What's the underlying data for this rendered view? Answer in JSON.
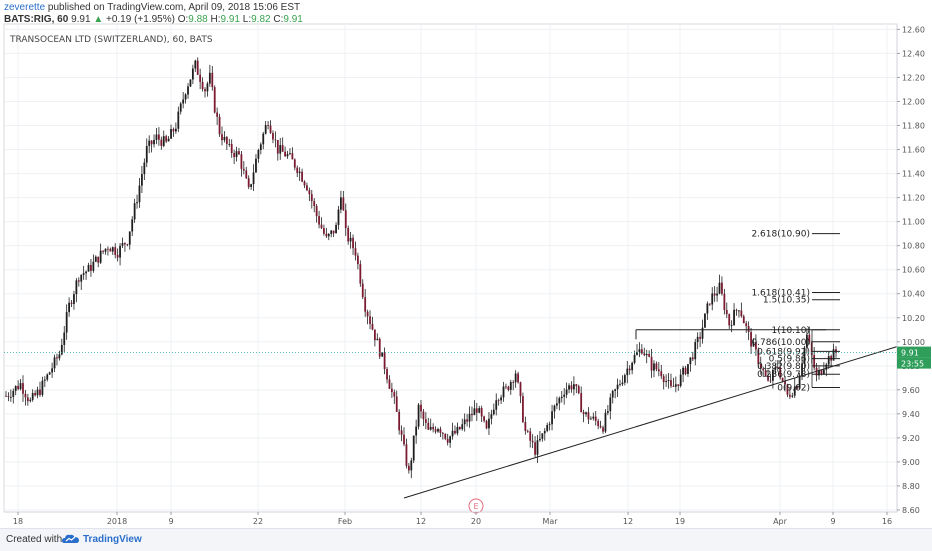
{
  "header": {
    "user": "zeverette",
    "published_text": "published on TradingView.com, April 09, 2018 15:06 EST",
    "symbol": "BATS:RIG, 60",
    "last": "9.91",
    "change": "+0.19 (+1.95%)",
    "o_label": "O:",
    "o_value": "9.88",
    "h_label": "H:",
    "h_value": "9.91",
    "l_label": "L:",
    "l_value": "9.82",
    "c_label": "C:",
    "c_value": "9.91"
  },
  "footer": {
    "created_text": "Created with",
    "brand": "TradingView",
    "logo_icon": "tradingview-cloud-icon"
  },
  "colors": {
    "candle": "#1e1e1e",
    "candle_down_accent": "#7a1a30",
    "current_price_line": "#26a69a",
    "badge_price": "#2e9e5a",
    "badge_countdown": "#2e9e5a",
    "earnings_marker": "#e36d7e"
  },
  "chart_data": {
    "type": "candlestick",
    "title": "TRANSOCEAN LTD (SWITZERLAND), 60, BATS",
    "ylim": [
      8.55,
      12.62
    ],
    "y_ticks": [
      "12.60",
      "12.40",
      "12.20",
      "12.00",
      "11.80",
      "11.60",
      "11.40",
      "11.20",
      "11.00",
      "10.80",
      "10.60",
      "10.40",
      "10.20",
      "10.00",
      "9.80",
      "9.60",
      "9.40",
      "9.20",
      "9.00",
      "8.80",
      "8.60"
    ],
    "x_ticks": [
      "18",
      "2018",
      "9",
      "22",
      "Feb",
      "12",
      "20",
      "Mar",
      "12",
      "19",
      "Apr",
      "9",
      "16"
    ],
    "current_price": "9.91",
    "countdown": "23:55",
    "grid": true,
    "earnings_marker": "E",
    "price_path": [
      [
        0,
        9.55
      ],
      [
        6,
        9.65
      ],
      [
        10,
        9.5
      ],
      [
        14,
        9.6
      ],
      [
        18,
        9.75
      ],
      [
        22,
        9.9
      ],
      [
        26,
        10.3
      ],
      [
        30,
        10.55
      ],
      [
        34,
        10.6
      ],
      [
        38,
        10.7
      ],
      [
        42,
        10.8
      ],
      [
        46,
        10.75
      ],
      [
        50,
        10.85
      ],
      [
        54,
        11.2
      ],
      [
        58,
        11.6
      ],
      [
        62,
        11.7
      ],
      [
        66,
        11.65
      ],
      [
        70,
        11.8
      ],
      [
        74,
        12.1
      ],
      [
        78,
        12.3
      ],
      [
        82,
        12.1
      ],
      [
        84,
        12.2
      ],
      [
        86,
        11.95
      ],
      [
        88,
        11.75
      ],
      [
        92,
        11.6
      ],
      [
        96,
        11.55
      ],
      [
        100,
        11.25
      ],
      [
        104,
        11.6
      ],
      [
        108,
        11.85
      ],
      [
        112,
        11.6
      ],
      [
        116,
        11.55
      ],
      [
        120,
        11.45
      ],
      [
        124,
        11.3
      ],
      [
        128,
        11.05
      ],
      [
        132,
        10.85
      ],
      [
        136,
        10.95
      ],
      [
        138,
        11.25
      ],
      [
        140,
        10.9
      ],
      [
        144,
        10.75
      ],
      [
        148,
        10.3
      ],
      [
        152,
        10.05
      ],
      [
        156,
        9.8
      ],
      [
        160,
        9.5
      ],
      [
        164,
        9.1
      ],
      [
        166,
        8.9
      ],
      [
        170,
        9.45
      ],
      [
        174,
        9.25
      ],
      [
        178,
        9.3
      ],
      [
        182,
        9.2
      ],
      [
        186,
        9.25
      ],
      [
        190,
        9.35
      ],
      [
        194,
        9.45
      ],
      [
        198,
        9.25
      ],
      [
        202,
        9.55
      ],
      [
        206,
        9.6
      ],
      [
        210,
        9.75
      ],
      [
        214,
        9.25
      ],
      [
        218,
        9.1
      ],
      [
        222,
        9.25
      ],
      [
        226,
        9.45
      ],
      [
        230,
        9.6
      ],
      [
        234,
        9.65
      ],
      [
        238,
        9.4
      ],
      [
        242,
        9.35
      ],
      [
        246,
        9.3
      ],
      [
        250,
        9.55
      ],
      [
        254,
        9.7
      ],
      [
        258,
        9.85
      ],
      [
        262,
        9.95
      ],
      [
        266,
        9.8
      ],
      [
        270,
        9.75
      ],
      [
        274,
        9.6
      ],
      [
        278,
        9.7
      ],
      [
        282,
        9.85
      ],
      [
        286,
        10.05
      ],
      [
        290,
        10.35
      ],
      [
        294,
        10.45
      ],
      [
        298,
        10.15
      ],
      [
        302,
        10.3
      ],
      [
        306,
        10.05
      ],
      [
        310,
        9.85
      ],
      [
        314,
        9.65
      ],
      [
        318,
        9.8
      ],
      [
        322,
        9.55
      ],
      [
        326,
        9.65
      ],
      [
        330,
        10.05
      ],
      [
        334,
        9.7
      ],
      [
        338,
        9.85
      ],
      [
        342,
        9.91
      ]
    ],
    "annotations": {
      "fib_levels": [
        {
          "label": "2.618(10.90)",
          "value": 10.9
        },
        {
          "label": "1.618(10.41)",
          "value": 10.41
        },
        {
          "label": "1.5(10.35)",
          "value": 10.35
        },
        {
          "label": "1(10.10)",
          "value": 10.1
        },
        {
          "label": "0.786(10.00)",
          "value": 10.0
        },
        {
          "label": "0.618(9.92)",
          "value": 9.92
        },
        {
          "label": "0.5(9.86)",
          "value": 9.86
        },
        {
          "label": "0.382(9.80)",
          "value": 9.8
        },
        {
          "label": "0.236(9.73)",
          "value": 9.73
        },
        {
          "label": "0(9.62)",
          "value": 9.62
        }
      ],
      "trendline": {
        "from": [
          "Feb 12",
          8.7
        ],
        "to": [
          "Apr 16",
          9.95
        ]
      },
      "resistance": {
        "from": [
          "Mar 12",
          10.1
        ],
        "to": [
          "Apr 9",
          10.1
        ]
      }
    }
  }
}
